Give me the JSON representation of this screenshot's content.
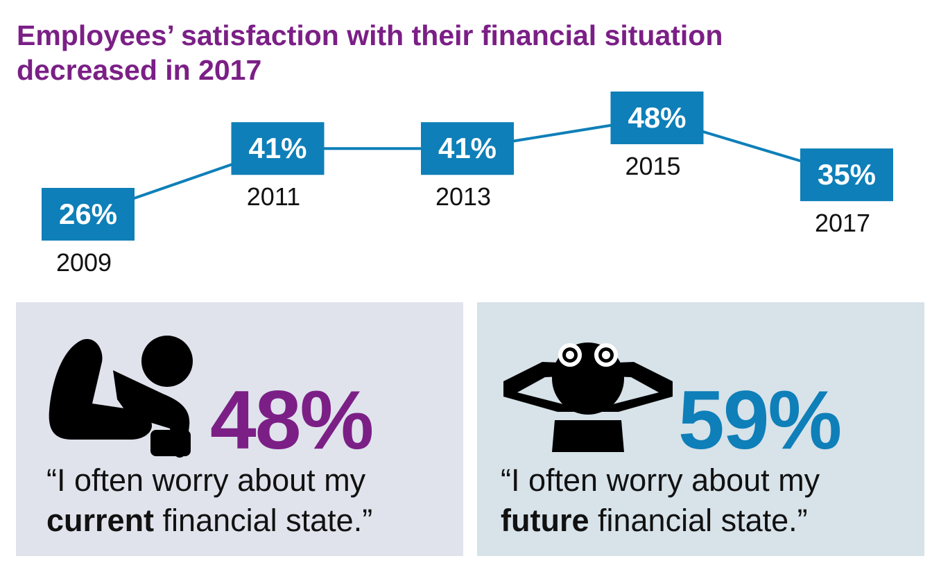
{
  "colors": {
    "title": "#7b1f86",
    "line": "#0e7fb8",
    "box": "#0e7fb8",
    "box_text": "#ffffff",
    "year_text": "#111111",
    "panel_left_bg": "#e0e3ec",
    "panel_right_bg": "#d7e2e9",
    "pct_left": "#7b1f86",
    "pct_right": "#0e7fb8",
    "icon": "#000000"
  },
  "title": {
    "line1": "Employees’ satisfaction with their financial situation",
    "line2": "decreased in 2017"
  },
  "chart_data": {
    "type": "line",
    "x": [
      "2009",
      "2011",
      "2013",
      "2015",
      "2017"
    ],
    "values": [
      26,
      41,
      41,
      48,
      35
    ],
    "labels": [
      "26%",
      "41%",
      "41%",
      "48%",
      "35%"
    ],
    "ylim": [
      20,
      50
    ],
    "grid": false,
    "xlabel": "",
    "ylabel": ""
  },
  "cards": [
    {
      "icon": "worried-person-icon",
      "percent": "48%",
      "quote_open": "“I often worry about my",
      "quote_bold": "current",
      "quote_close": " financial state.”"
    },
    {
      "icon": "person-with-binoculars-icon",
      "percent": "59%",
      "quote_open": "“I often worry about my",
      "quote_bold": "future",
      "quote_close": " financial state.”"
    }
  ]
}
